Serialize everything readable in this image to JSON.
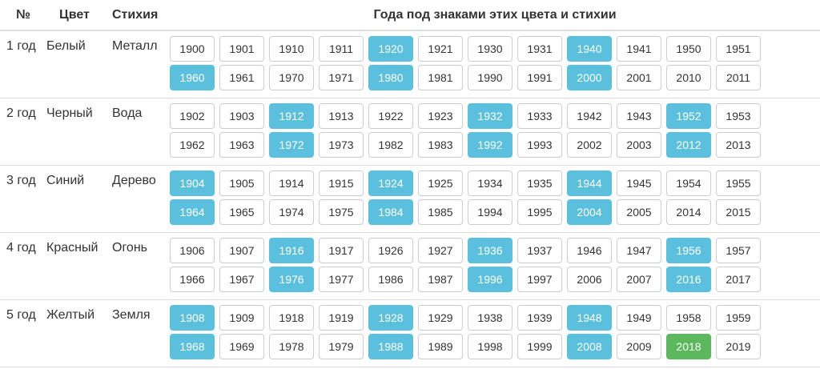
{
  "header": {
    "num": "№",
    "color": "Цвет",
    "element": "Стихия",
    "years": "Года под знаками этих цвета и стихии"
  },
  "colors": {
    "highlight": "#5bc0de",
    "current": "#5cb85c"
  },
  "rows": [
    {
      "num": "1 год",
      "color": "Белый",
      "element": "Металл",
      "years": [
        {
          "label": "1900",
          "state": "normal"
        },
        {
          "label": "1901",
          "state": "normal"
        },
        {
          "label": "1910",
          "state": "normal"
        },
        {
          "label": "1911",
          "state": "normal"
        },
        {
          "label": "1920",
          "state": "highlight"
        },
        {
          "label": "1921",
          "state": "normal"
        },
        {
          "label": "1930",
          "state": "normal"
        },
        {
          "label": "1931",
          "state": "normal"
        },
        {
          "label": "1940",
          "state": "highlight"
        },
        {
          "label": "1941",
          "state": "normal"
        },
        {
          "label": "1950",
          "state": "normal"
        },
        {
          "label": "1951",
          "state": "normal"
        },
        {
          "label": "1960",
          "state": "highlight"
        },
        {
          "label": "1961",
          "state": "normal"
        },
        {
          "label": "1970",
          "state": "normal"
        },
        {
          "label": "1971",
          "state": "normal"
        },
        {
          "label": "1980",
          "state": "highlight"
        },
        {
          "label": "1981",
          "state": "normal"
        },
        {
          "label": "1990",
          "state": "normal"
        },
        {
          "label": "1991",
          "state": "normal"
        },
        {
          "label": "2000",
          "state": "highlight"
        },
        {
          "label": "2001",
          "state": "normal"
        },
        {
          "label": "2010",
          "state": "normal"
        },
        {
          "label": "2011",
          "state": "normal"
        }
      ]
    },
    {
      "num": "2 год",
      "color": "Черный",
      "element": "Вода",
      "years": [
        {
          "label": "1902",
          "state": "normal"
        },
        {
          "label": "1903",
          "state": "normal"
        },
        {
          "label": "1912",
          "state": "highlight"
        },
        {
          "label": "1913",
          "state": "normal"
        },
        {
          "label": "1922",
          "state": "normal"
        },
        {
          "label": "1923",
          "state": "normal"
        },
        {
          "label": "1932",
          "state": "highlight"
        },
        {
          "label": "1933",
          "state": "normal"
        },
        {
          "label": "1942",
          "state": "normal"
        },
        {
          "label": "1943",
          "state": "normal"
        },
        {
          "label": "1952",
          "state": "highlight"
        },
        {
          "label": "1953",
          "state": "normal"
        },
        {
          "label": "1962",
          "state": "normal"
        },
        {
          "label": "1963",
          "state": "normal"
        },
        {
          "label": "1972",
          "state": "highlight"
        },
        {
          "label": "1973",
          "state": "normal"
        },
        {
          "label": "1982",
          "state": "normal"
        },
        {
          "label": "1983",
          "state": "normal"
        },
        {
          "label": "1992",
          "state": "highlight"
        },
        {
          "label": "1993",
          "state": "normal"
        },
        {
          "label": "2002",
          "state": "normal"
        },
        {
          "label": "2003",
          "state": "normal"
        },
        {
          "label": "2012",
          "state": "highlight"
        },
        {
          "label": "2013",
          "state": "normal"
        }
      ]
    },
    {
      "num": "3 год",
      "color": "Синий",
      "element": "Дерево",
      "years": [
        {
          "label": "1904",
          "state": "highlight"
        },
        {
          "label": "1905",
          "state": "normal"
        },
        {
          "label": "1914",
          "state": "normal"
        },
        {
          "label": "1915",
          "state": "normal"
        },
        {
          "label": "1924",
          "state": "highlight"
        },
        {
          "label": "1925",
          "state": "normal"
        },
        {
          "label": "1934",
          "state": "normal"
        },
        {
          "label": "1935",
          "state": "normal"
        },
        {
          "label": "1944",
          "state": "highlight"
        },
        {
          "label": "1945",
          "state": "normal"
        },
        {
          "label": "1954",
          "state": "normal"
        },
        {
          "label": "1955",
          "state": "normal"
        },
        {
          "label": "1964",
          "state": "highlight"
        },
        {
          "label": "1965",
          "state": "normal"
        },
        {
          "label": "1974",
          "state": "normal"
        },
        {
          "label": "1975",
          "state": "normal"
        },
        {
          "label": "1984",
          "state": "highlight"
        },
        {
          "label": "1985",
          "state": "normal"
        },
        {
          "label": "1994",
          "state": "normal"
        },
        {
          "label": "1995",
          "state": "normal"
        },
        {
          "label": "2004",
          "state": "highlight"
        },
        {
          "label": "2005",
          "state": "normal"
        },
        {
          "label": "2014",
          "state": "normal"
        },
        {
          "label": "2015",
          "state": "normal"
        }
      ]
    },
    {
      "num": "4 год",
      "color": "Красный",
      "element": "Огонь",
      "years": [
        {
          "label": "1906",
          "state": "normal"
        },
        {
          "label": "1907",
          "state": "normal"
        },
        {
          "label": "1916",
          "state": "highlight"
        },
        {
          "label": "1917",
          "state": "normal"
        },
        {
          "label": "1926",
          "state": "normal"
        },
        {
          "label": "1927",
          "state": "normal"
        },
        {
          "label": "1936",
          "state": "highlight"
        },
        {
          "label": "1937",
          "state": "normal"
        },
        {
          "label": "1946",
          "state": "normal"
        },
        {
          "label": "1947",
          "state": "normal"
        },
        {
          "label": "1956",
          "state": "highlight"
        },
        {
          "label": "1957",
          "state": "normal"
        },
        {
          "label": "1966",
          "state": "normal"
        },
        {
          "label": "1967",
          "state": "normal"
        },
        {
          "label": "1976",
          "state": "highlight"
        },
        {
          "label": "1977",
          "state": "normal"
        },
        {
          "label": "1986",
          "state": "normal"
        },
        {
          "label": "1987",
          "state": "normal"
        },
        {
          "label": "1996",
          "state": "highlight"
        },
        {
          "label": "1997",
          "state": "normal"
        },
        {
          "label": "2006",
          "state": "normal"
        },
        {
          "label": "2007",
          "state": "normal"
        },
        {
          "label": "2016",
          "state": "highlight"
        },
        {
          "label": "2017",
          "state": "normal"
        }
      ]
    },
    {
      "num": "5 год",
      "color": "Желтый",
      "element": "Земля",
      "years": [
        {
          "label": "1908",
          "state": "highlight"
        },
        {
          "label": "1909",
          "state": "normal"
        },
        {
          "label": "1918",
          "state": "normal"
        },
        {
          "label": "1919",
          "state": "normal"
        },
        {
          "label": "1928",
          "state": "highlight"
        },
        {
          "label": "1929",
          "state": "normal"
        },
        {
          "label": "1938",
          "state": "normal"
        },
        {
          "label": "1939",
          "state": "normal"
        },
        {
          "label": "1948",
          "state": "highlight"
        },
        {
          "label": "1949",
          "state": "normal"
        },
        {
          "label": "1958",
          "state": "normal"
        },
        {
          "label": "1959",
          "state": "normal"
        },
        {
          "label": "1968",
          "state": "highlight"
        },
        {
          "label": "1969",
          "state": "normal"
        },
        {
          "label": "1978",
          "state": "normal"
        },
        {
          "label": "1979",
          "state": "normal"
        },
        {
          "label": "1988",
          "state": "highlight"
        },
        {
          "label": "1989",
          "state": "normal"
        },
        {
          "label": "1998",
          "state": "normal"
        },
        {
          "label": "1999",
          "state": "normal"
        },
        {
          "label": "2008",
          "state": "highlight"
        },
        {
          "label": "2009",
          "state": "normal"
        },
        {
          "label": "2018",
          "state": "current"
        },
        {
          "label": "2019",
          "state": "normal"
        }
      ]
    }
  ]
}
